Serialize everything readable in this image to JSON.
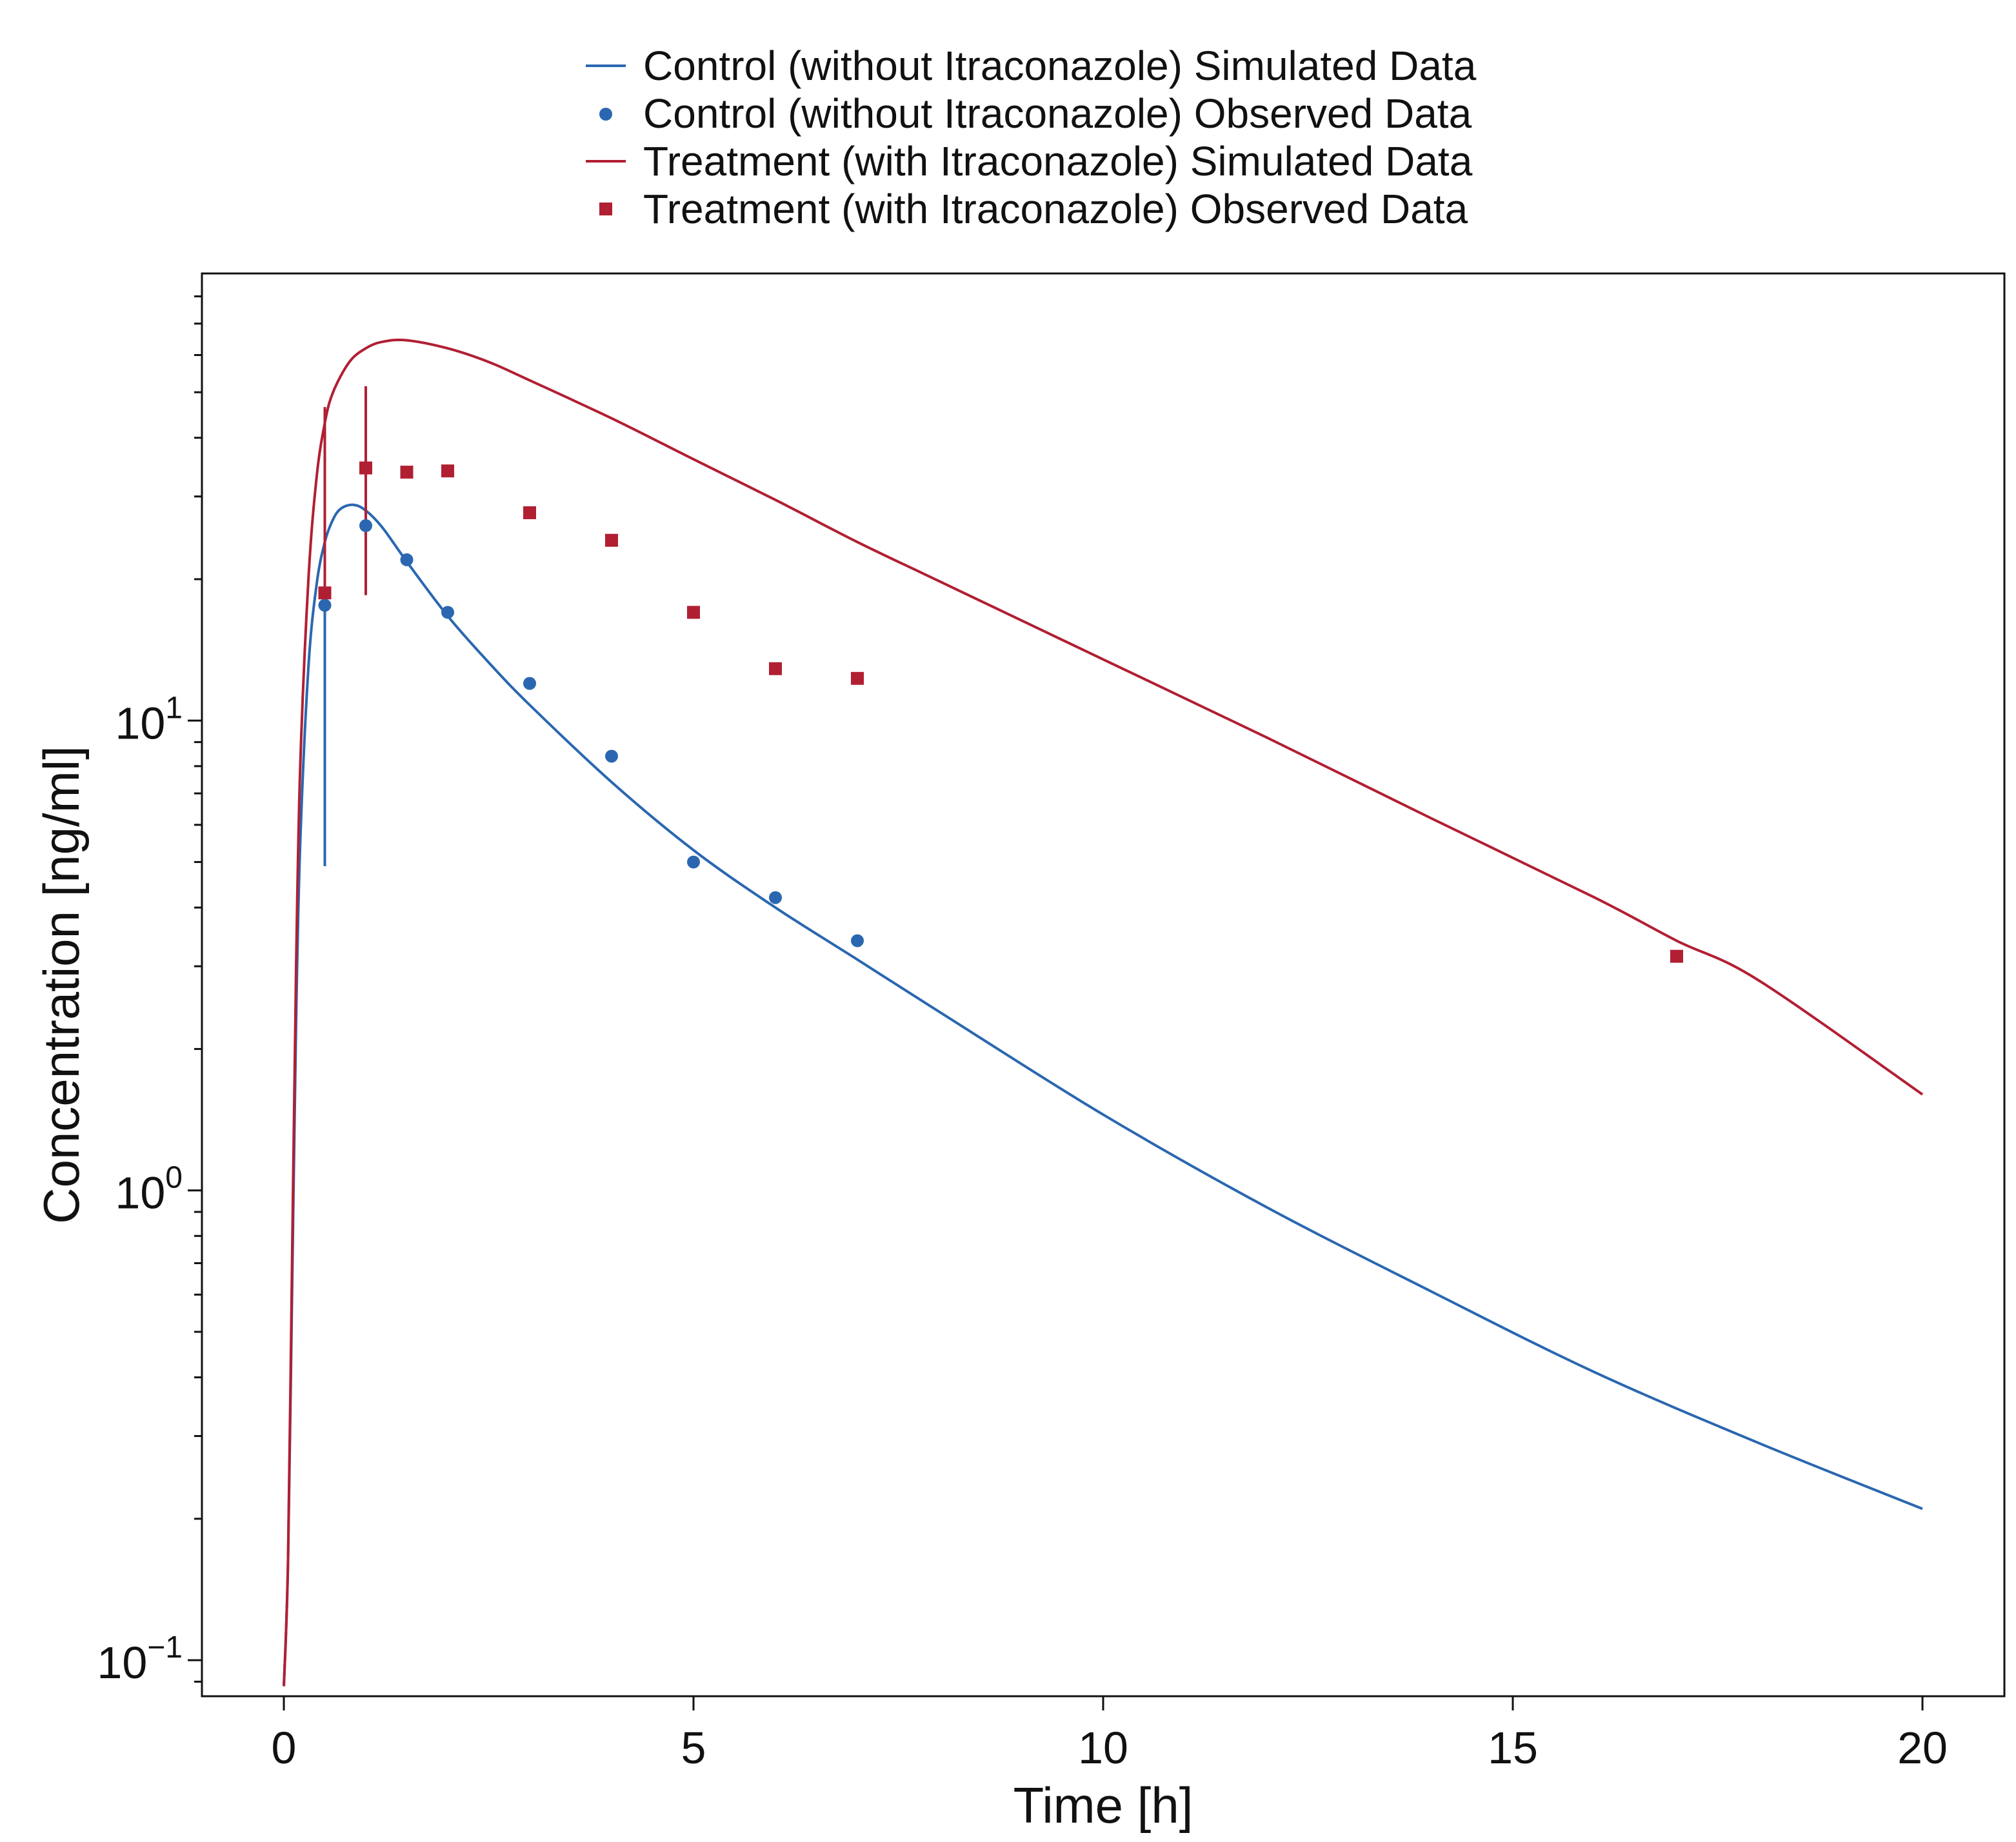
{
  "chart_data": {
    "type": "line",
    "xlabel": "Time [h]",
    "ylabel": "Concentration [ng/ml]",
    "xlim": [
      -1,
      21
    ],
    "ylim": [
      0.0838,
      89.5
    ],
    "yscale": "log",
    "x_ticks": [
      0,
      5,
      10,
      15,
      20
    ],
    "x_tick_labels": [
      "0",
      "5",
      "10",
      "15",
      "20"
    ],
    "y_major_ticks": [
      {
        "value": 0.1,
        "base": "10",
        "exponent": "−1"
      },
      {
        "value": 1,
        "base": "10",
        "exponent": "0"
      },
      {
        "value": 10,
        "base": "10",
        "exponent": "1"
      }
    ],
    "grid": false,
    "legend_position": "top-center",
    "colors": {
      "control": "#2a67b0",
      "treatment": "#b11f33",
      "axis": "#111111"
    },
    "series": [
      {
        "name": "Control (without Itraconazole) Simulated Data",
        "kind": "line",
        "color": "#2a67b0",
        "x": [
          0,
          0.05,
          0.1,
          0.15,
          0.2,
          0.3,
          0.4,
          0.5,
          0.6,
          0.7,
          0.85,
          1.0,
          1.2,
          1.5,
          2.0,
          2.5,
          3.0,
          4.0,
          5.0,
          6.0,
          7.0,
          8.0,
          10.0,
          12.0,
          14.0,
          16.0,
          18.0,
          20.0
        ],
        "y": [
          0.088,
          0.16,
          0.6,
          2.3,
          5.5,
          13.0,
          19.5,
          24.0,
          26.8,
          28.3,
          28.8,
          28.0,
          25.8,
          21.8,
          16.7,
          13.3,
          10.8,
          7.4,
          5.3,
          4.0,
          3.1,
          2.4,
          1.45,
          0.92,
          0.61,
          0.41,
          0.29,
          0.21
        ]
      },
      {
        "name": "Control (without Itraconazole) Observed Data",
        "kind": "scatter",
        "marker": "circle",
        "color": "#2a67b0",
        "x": [
          0.5,
          1,
          1.5,
          2,
          3,
          4,
          5,
          6,
          7
        ],
        "y": [
          17.6,
          26,
          22,
          17,
          12,
          8.4,
          5,
          4.2,
          3.4
        ],
        "error_bars": [
          {
            "x": 0.5,
            "low": 4.9,
            "high": 17.6
          }
        ]
      },
      {
        "name": "Treatment (with Itraconazole) Simulated Data",
        "kind": "line",
        "color": "#b11f33",
        "x": [
          0,
          0.05,
          0.1,
          0.15,
          0.2,
          0.3,
          0.4,
          0.5,
          0.6,
          0.8,
          1.0,
          1.2,
          1.5,
          2.0,
          2.5,
          3.0,
          4.0,
          5.0,
          6.0,
          7.0,
          8.0,
          10.0,
          12.0,
          14.0,
          16.0,
          17.0,
          18.0,
          20.0
        ],
        "y": [
          0.088,
          0.16,
          0.7,
          3.0,
          8.0,
          20.0,
          33.0,
          43.0,
          50.0,
          58.0,
          62.0,
          64.0,
          64.5,
          62.0,
          58.0,
          53.0,
          44.0,
          36.0,
          29.5,
          24.0,
          19.8,
          13.5,
          9.2,
          6.2,
          4.2,
          3.4,
          2.8,
          1.6
        ]
      },
      {
        "name": "Treatment (with Itraconazole) Observed Data",
        "kind": "scatter",
        "marker": "square",
        "color": "#b11f33",
        "x": [
          0.5,
          1,
          1.5,
          2,
          3,
          4,
          5,
          6,
          7,
          17
        ],
        "y": [
          18.7,
          34.5,
          33.8,
          34,
          27.7,
          24.2,
          17,
          12.9,
          12.3,
          3.15
        ],
        "error_bars": [
          {
            "x": 0.5,
            "low": 18.7,
            "high": 46.5
          },
          {
            "x": 1,
            "low": 18.5,
            "high": 51.5
          }
        ]
      }
    ]
  }
}
